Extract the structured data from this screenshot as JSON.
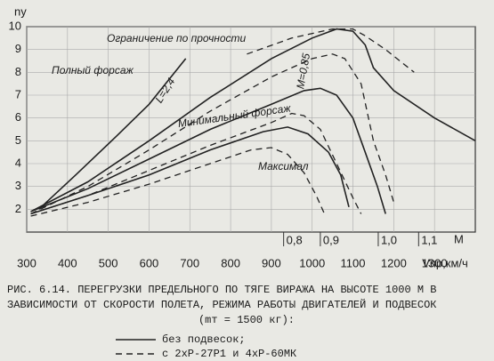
{
  "chart_data": {
    "type": "line",
    "y_label": "nу",
    "x_label": "Vпр,км/ч",
    "xlim": [
      300,
      1400
    ],
    "xticks": [
      300,
      400,
      500,
      600,
      700,
      800,
      900,
      1000,
      1100,
      1200,
      1300
    ],
    "ylim": [
      1,
      10
    ],
    "yticks": [
      2,
      3,
      4,
      5,
      6,
      7,
      8,
      9,
      10
    ],
    "grid": true,
    "mach_label": "M",
    "mach_ticks": [
      {
        "value": 930,
        "label": "0,8"
      },
      {
        "value": 1020,
        "label": "0,9"
      },
      {
        "value": 1162,
        "label": "1,0"
      },
      {
        "value": 1261,
        "label": "1,1"
      }
    ],
    "series": [
      {
        "style": "solid",
        "color": "#222",
        "x": [
          310,
          450,
          600,
          750,
          900,
          1000,
          1060,
          1100,
          1130,
          1150,
          1200,
          1300,
          1400
        ],
        "values": [
          1.9,
          3.2,
          5.0,
          6.9,
          8.6,
          9.5,
          9.9,
          9.8,
          9.2,
          8.2,
          7.2,
          6.0,
          5.0
        ]
      },
      {
        "style": "dashed",
        "color": "#222",
        "x": [
          310,
          450,
          600,
          750,
          900,
          1000,
          1050,
          1080,
          1120,
          1150,
          1180,
          1200
        ],
        "values": [
          1.8,
          3.0,
          4.6,
          6.3,
          7.8,
          8.6,
          8.8,
          8.6,
          7.5,
          5.0,
          3.5,
          2.3
        ]
      },
      {
        "style": "solid",
        "color": "#222",
        "x": [
          310,
          450,
          600,
          750,
          900,
          980,
          1020,
          1060,
          1100,
          1130,
          1160,
          1180
        ],
        "values": [
          1.9,
          2.9,
          4.2,
          5.5,
          6.6,
          7.2,
          7.3,
          7.0,
          6.0,
          4.5,
          3.0,
          1.8
        ]
      },
      {
        "style": "dashed",
        "color": "#222",
        "x": [
          310,
          450,
          600,
          750,
          900,
          950,
          980,
          1020,
          1060,
          1100,
          1120
        ],
        "values": [
          1.8,
          2.6,
          3.7,
          4.8,
          5.8,
          6.2,
          6.1,
          5.5,
          4.0,
          2.5,
          1.8
        ]
      },
      {
        "style": "solid",
        "color": "#222",
        "x": [
          310,
          450,
          600,
          750,
          880,
          940,
          990,
          1040,
          1070,
          1090
        ],
        "values": [
          1.8,
          2.6,
          3.5,
          4.6,
          5.4,
          5.6,
          5.3,
          4.5,
          3.5,
          2.1
        ]
      },
      {
        "style": "dashed",
        "color": "#222",
        "x": [
          310,
          450,
          600,
          750,
          850,
          900,
          940,
          980,
          1010,
          1030
        ],
        "values": [
          1.7,
          2.3,
          3.1,
          4.0,
          4.6,
          4.7,
          4.4,
          3.6,
          2.6,
          1.8
        ]
      },
      {
        "style": "dashed",
        "color": "#222",
        "x": [
          840,
          950,
          1050,
          1100,
          1130,
          1180,
          1250
        ],
        "values": [
          8.8,
          9.5,
          9.9,
          9.9,
          9.6,
          9.0,
          8.0
        ]
      },
      {
        "style": "solid",
        "color": "#222",
        "x": [
          330,
          420,
          520,
          600,
          690
        ],
        "values": [
          2.0,
          3.5,
          5.2,
          6.6,
          8.6
        ]
      }
    ],
    "annotations": [
      {
        "text": "Ограничение по прочности"
      },
      {
        "text": "Полный форсаж"
      },
      {
        "text": "L=2,4"
      },
      {
        "text": "Минимальный форсаж"
      },
      {
        "text": "Максимал"
      },
      {
        "text": "M=0,85"
      }
    ],
    "caption": [
      "РИС. 6.14. ПЕРЕГРУЗКИ ПРЕДЕЛЬНОГО ПО ТЯГЕ ВИРАЖА НА ВЫСОТЕ 1000 М В",
      "ЗАВИСИМОСТИ ОТ СКОРОСТИ ПОЛЕТА, РЕЖИМА РАБОТЫ ДВИГАТЕЛЕЙ И ПОДВЕСОК",
      "(mт = 1500 кг):"
    ],
    "legend": [
      {
        "style": "solid",
        "label": "без подвесок;"
      },
      {
        "style": "dashed",
        "label": "с 2хР-27Р1 и 4хР-60МК"
      }
    ]
  }
}
